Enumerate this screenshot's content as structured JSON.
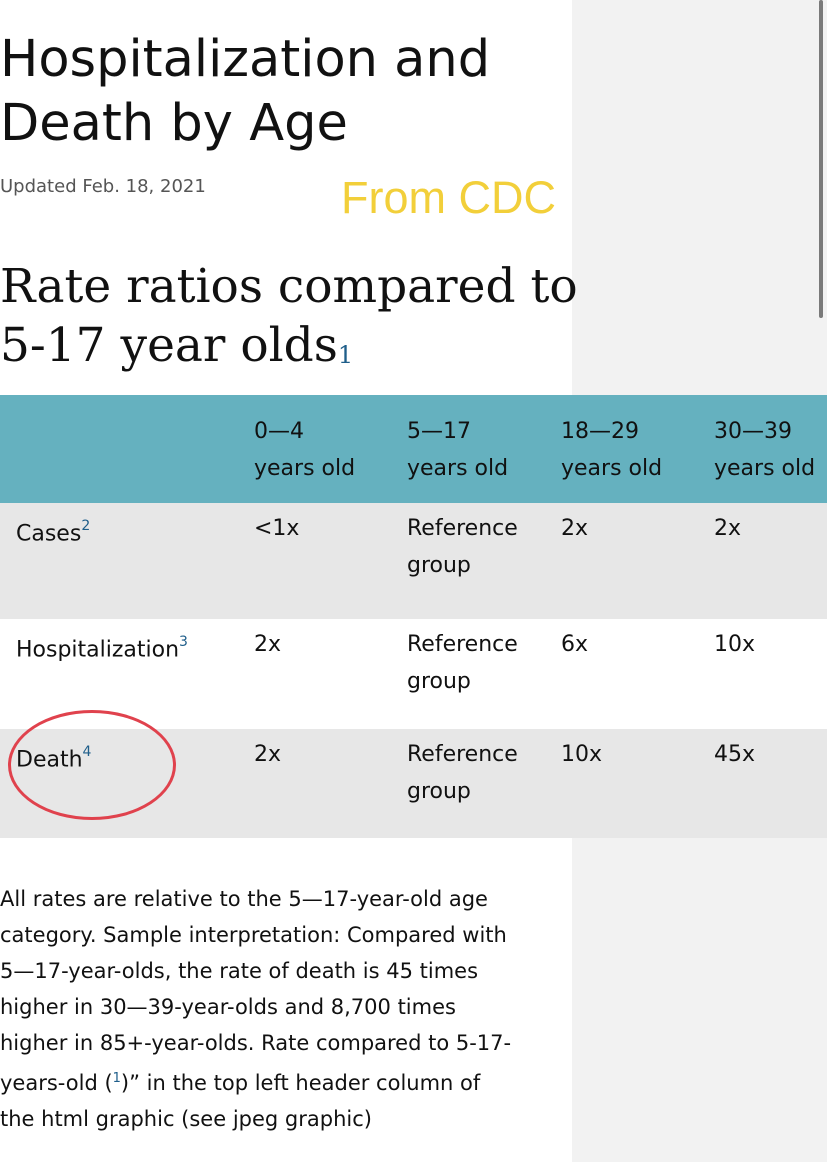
{
  "page": {
    "title_lines": [
      "Hospitalization and",
      "Death by Age"
    ],
    "updated": "Updated Feb. 18, 2021",
    "watermark": "From CDC",
    "section_title_lines": [
      "Rate ratios compared to",
      "5-17 year olds"
    ],
    "section_title_footnote": "1"
  },
  "table": {
    "headers": [
      {
        "line1": "",
        "line2": ""
      },
      {
        "line1": "0—4",
        "line2": "years old"
      },
      {
        "line1": "5—17",
        "line2": "years old"
      },
      {
        "line1": "18—29",
        "line2": "years old"
      },
      {
        "line1": "30—39",
        "line2": "years old"
      }
    ],
    "rows": [
      {
        "label": "Cases",
        "footnote": "2",
        "values": [
          "<1x",
          "Reference",
          "group",
          "2x",
          "2x"
        ]
      },
      {
        "label": "Hospitalization",
        "footnote": "3",
        "values": [
          "2x",
          "Reference",
          "group",
          "6x",
          "10x"
        ]
      },
      {
        "label": "Death",
        "footnote": "4",
        "values": [
          "2x",
          "Reference",
          "group",
          "10x",
          "45x"
        ]
      }
    ]
  },
  "note": {
    "lines": [
      "All rates are relative to the 5—17-year-old age",
      "category. Sample interpretation: Compared with",
      "5—17-year-olds, the rate of death is 45 times",
      "higher in 30—39-year-olds and 8,700 times",
      "higher in 85+-year-olds. Rate compared to 5-17-"
    ],
    "line6_before": "years-old (",
    "line6_footnote": "1",
    "line6_after": ")” in the top left header column of",
    "line7": "the html graphic (see jpeg graphic)"
  },
  "colors": {
    "header_bg": "#65b1bf",
    "row_shade": "#e7e7e7",
    "watermark": "#f2cf3a",
    "annotation_circle": "#e0424d",
    "link": "#1f5e8a"
  }
}
